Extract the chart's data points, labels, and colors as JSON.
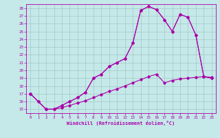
{
  "xlabel": "Windchill (Refroidissement éolien,°C)",
  "bg_color": "#c5e8e8",
  "line_color": "#aa00aa",
  "xlim": [
    -0.5,
    23.5
  ],
  "ylim": [
    14.5,
    28.5
  ],
  "xticks": [
    0,
    1,
    2,
    3,
    4,
    5,
    6,
    7,
    8,
    9,
    10,
    11,
    12,
    13,
    14,
    15,
    16,
    17,
    18,
    19,
    20,
    21,
    22,
    23
  ],
  "yticks": [
    15,
    16,
    17,
    18,
    19,
    20,
    21,
    22,
    23,
    24,
    25,
    26,
    27,
    28
  ],
  "line1_x": [
    0,
    1,
    2,
    3,
    4,
    5,
    6,
    7,
    8,
    9,
    10,
    11,
    12,
    13,
    14,
    15,
    16,
    17,
    18,
    19,
    20,
    21,
    22,
    23
  ],
  "line1_y": [
    17.0,
    16.0,
    15.0,
    15.0,
    15.5,
    16.0,
    16.5,
    17.2,
    19.0,
    19.5,
    20.5,
    21.0,
    21.5,
    23.5,
    27.7,
    28.2,
    27.8,
    26.5,
    25.0,
    27.2,
    26.8,
    24.5,
    19.2,
    19.0
  ],
  "line2_x": [
    0,
    2,
    3,
    4,
    5,
    6,
    7,
    8,
    9,
    10,
    11,
    12,
    13,
    14,
    15,
    16,
    17,
    18,
    19,
    20,
    21,
    22,
    23
  ],
  "line2_y": [
    17.0,
    15.0,
    15.0,
    15.5,
    16.0,
    16.5,
    17.2,
    19.0,
    19.5,
    20.5,
    21.0,
    21.5,
    23.5,
    27.7,
    28.2,
    27.8,
    26.5,
    25.0,
    27.2,
    26.8,
    24.5,
    19.2,
    19.0
  ],
  "line3_x": [
    0,
    1,
    2,
    3,
    4,
    5,
    6,
    7,
    8,
    9,
    10,
    11,
    12,
    13,
    14,
    15,
    16,
    17,
    18,
    19,
    20,
    21,
    22,
    23
  ],
  "line3_y": [
    17.0,
    16.0,
    15.0,
    15.0,
    15.2,
    15.5,
    15.8,
    16.1,
    16.5,
    16.9,
    17.3,
    17.6,
    18.0,
    18.4,
    18.8,
    19.2,
    19.5,
    18.4,
    18.7,
    18.9,
    19.0,
    19.1,
    19.2,
    19.1
  ]
}
